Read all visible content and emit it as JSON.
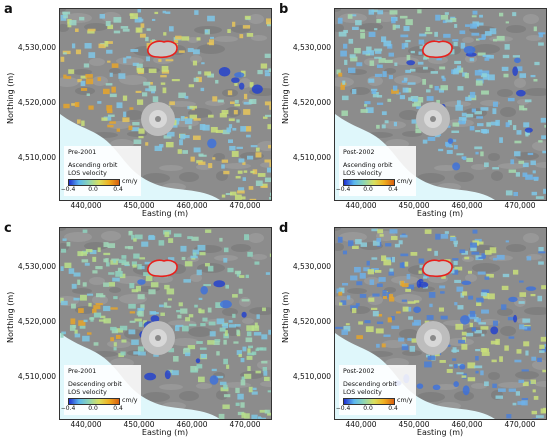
{
  "panels": [
    {
      "letter": "a",
      "period": "Pre-2001",
      "orbit": "Ascending orbit",
      "metric": "LOS velocity",
      "unit": "cm/y",
      "style": "a"
    },
    {
      "letter": "b",
      "period": "Post-2002",
      "orbit": "Ascending orbit",
      "metric": "LOS velocity",
      "unit": "cm/y",
      "style": "b"
    },
    {
      "letter": "c",
      "period": "Pre-2001",
      "orbit": "Descending orbit",
      "metric": "LOS velocity",
      "unit": "cm/y",
      "style": "c"
    },
    {
      "letter": "d",
      "period": "Post-2002",
      "orbit": "Descending orbit",
      "metric": "LOS velocity",
      "unit": "cm/y",
      "style": "d"
    }
  ],
  "axes": {
    "xlabel": "Easting (m)",
    "ylabel": "Northing (m)",
    "xticks": [
      "440,000",
      "450,000",
      "460,000",
      "470,000"
    ],
    "yticks": [
      "4,530,000",
      "4,520,000",
      "4,510,000"
    ]
  },
  "colorbar": {
    "ticks": [
      "−0.4",
      "0.0",
      "0.4"
    ],
    "range": [
      -0.4,
      0.4
    ],
    "colors": [
      "#1f2fd0",
      "#5ab7f0",
      "#8ed6b2",
      "#d8e060",
      "#f0b020",
      "#d86010"
    ]
  },
  "colors": {
    "sea": "#dff7fb",
    "land_shade": "#8c8c8c",
    "caldera_outline": "#e8201c"
  }
}
